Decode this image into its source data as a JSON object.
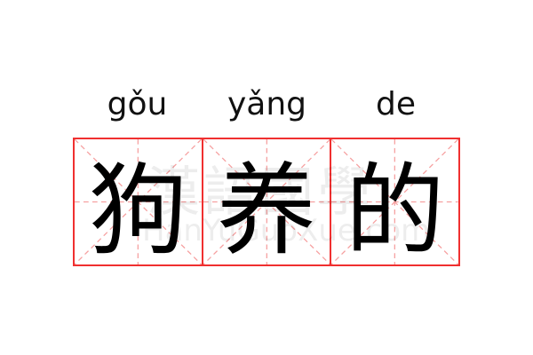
{
  "pinyin": [
    "gǒu",
    "yǎng",
    "de"
  ],
  "characters": [
    "狗",
    "养",
    "的"
  ],
  "watermark": {
    "text": "漢語國學",
    "url": "HanYuGuoXue.com"
  },
  "colors": {
    "grid_border": "#f03030",
    "grid_guides": "#f6a0a0",
    "text": "#000000"
  }
}
